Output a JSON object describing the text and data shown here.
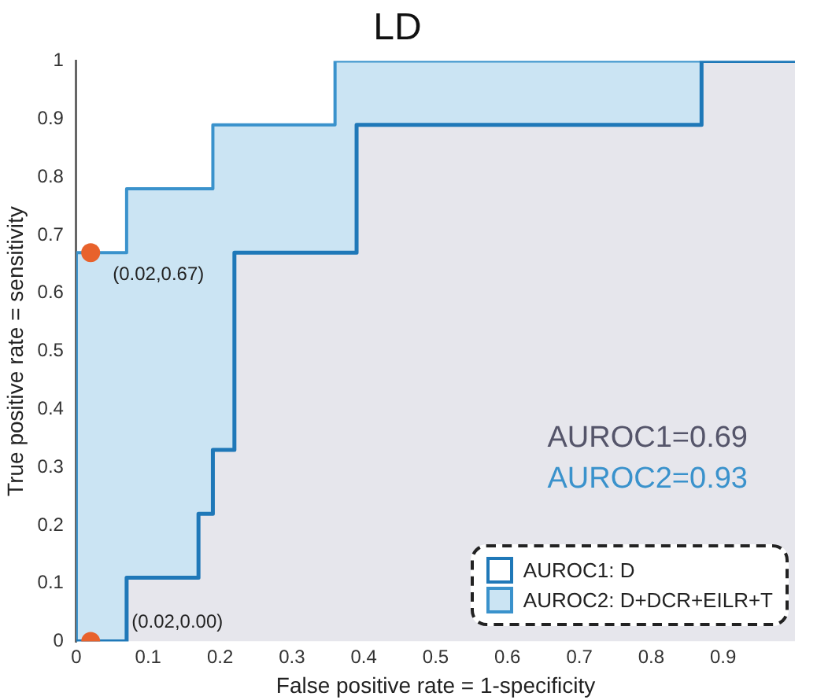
{
  "chart_data": {
    "type": "step",
    "title": "LD",
    "xlabel": "False positive rate = 1-specificity",
    "ylabel": "True positive rate = sensitivity",
    "series": [
      {
        "name": "AUROC1: D",
        "color": "#1f78b8",
        "x": [
          0,
          0.07,
          0.17,
          0.19,
          0.22,
          0.39,
          0.87,
          1
        ],
        "values": [
          0,
          0.11,
          0.22,
          0.33,
          0.67,
          0.89,
          1,
          1
        ]
      },
      {
        "name": "AUROC2: D+DCR+EILR+T",
        "color": "#3a92cc",
        "x": [
          0,
          0,
          0.07,
          0.19,
          0.36,
          1
        ],
        "values": [
          0,
          0.67,
          0.78,
          0.89,
          1,
          1
        ]
      },
      {
        "type": "scatter",
        "color": "#e8622c",
        "x": [
          0.02,
          0.02
        ],
        "values": [
          0.67,
          0
        ]
      }
    ],
    "annotations": [
      {
        "text": "(0.02,0.67)",
        "x": 0.02,
        "y": 0.67
      },
      {
        "text": "(0.02,0.00)",
        "x": 0.02,
        "y": 0
      },
      "AUROC1=0.69",
      "AUROC2=0.93"
    ],
    "xlim": [
      0,
      1
    ],
    "ylim": [
      0,
      1
    ],
    "xticks": [
      0,
      0.1,
      0.2,
      0.3,
      0.4,
      0.5,
      0.6,
      0.7,
      0.8,
      0.9
    ],
    "yticks": [
      0,
      0.1,
      0.2,
      0.3,
      0.4,
      0.5,
      0.6,
      0.7,
      0.8,
      0.9,
      1
    ],
    "grid": false,
    "legend": "bottom right"
  }
}
